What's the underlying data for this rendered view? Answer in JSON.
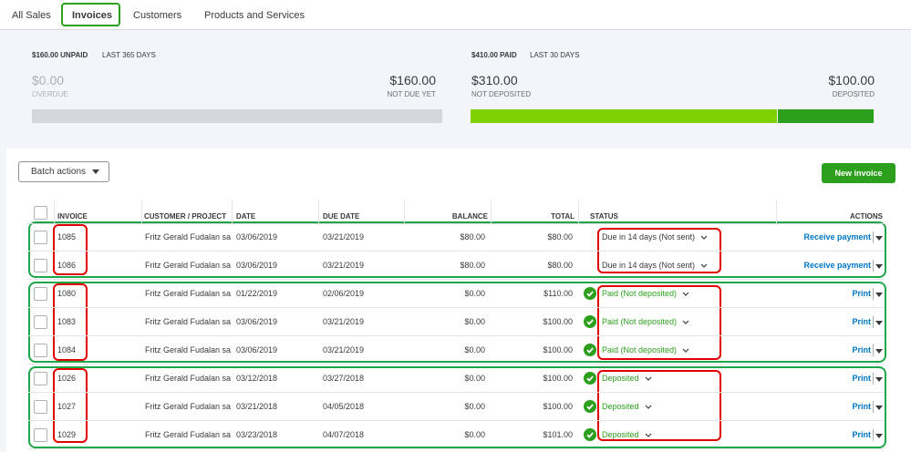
{
  "tabs": [
    "All Sales",
    "Invoices",
    "Customers",
    "Products and Services"
  ],
  "summary": {
    "unpaid": {
      "header": "$160.00 UNPAID",
      "period": "LAST 365 DAYS",
      "left_amount": "$0.00",
      "left_label": "OVERDUE",
      "right_amount": "$160.00",
      "right_label": "NOT DUE YET"
    },
    "paid": {
      "header": "$410.00 PAID",
      "period": "LAST 30 DAYS",
      "left_amount": "$310.00",
      "left_label": "NOT DEPOSITED",
      "right_amount": "$100.00",
      "right_label": "DEPOSITED"
    }
  },
  "toolbar": {
    "batch_actions": "Batch actions",
    "new_invoice": "New invoice"
  },
  "table": {
    "headers": [
      "INVOICE",
      "CUSTOMER / PROJECT",
      "DATE",
      "DUE DATE",
      "BALANCE",
      "TOTAL",
      "STATUS",
      "ACTIONS"
    ],
    "rows": [
      [
        "1085",
        "Fritz Gerald Fudalan sa",
        "03/06/2019",
        "03/21/2019",
        "$80.00",
        "$80.00",
        "Due in 14 days (Not sent)",
        "Receive payment"
      ],
      [
        "1086",
        "Fritz Gerald Fudalan sa",
        "03/06/2019",
        "03/21/2019",
        "$80.00",
        "$80.00",
        "Due in 14 days (Not sent)",
        "Receive payment"
      ],
      [
        "1080",
        "Fritz Gerald Fudalan sa",
        "01/22/2019",
        "02/06/2019",
        "$0.00",
        "$110.00",
        "Paid (Not deposited)",
        "Print"
      ],
      [
        "1083",
        "Fritz Gerald Fudalan sa",
        "03/06/2019",
        "03/21/2019",
        "$0.00",
        "$100.00",
        "Paid (Not deposited)",
        "Print"
      ],
      [
        "1084",
        "Fritz Gerald Fudalan sa",
        "03/06/2019",
        "03/21/2019",
        "$0.00",
        "$100.00",
        "Paid (Not deposited)",
        "Print"
      ],
      [
        "1026",
        "Fritz Gerald Fudalan sa",
        "03/12/2018",
        "03/27/2018",
        "$0.00",
        "$100.00",
        "Deposited",
        "Print"
      ],
      [
        "1027",
        "Fritz Gerald Fudalan sa",
        "03/21/2018",
        "04/05/2018",
        "$0.00",
        "$100.00",
        "Deposited",
        "Print"
      ],
      [
        "1029",
        "Fritz Gerald Fudalan sa",
        "03/23/2018",
        "04/07/2018",
        "$0.00",
        "$101.00",
        "Deposited",
        "Print"
      ]
    ]
  }
}
